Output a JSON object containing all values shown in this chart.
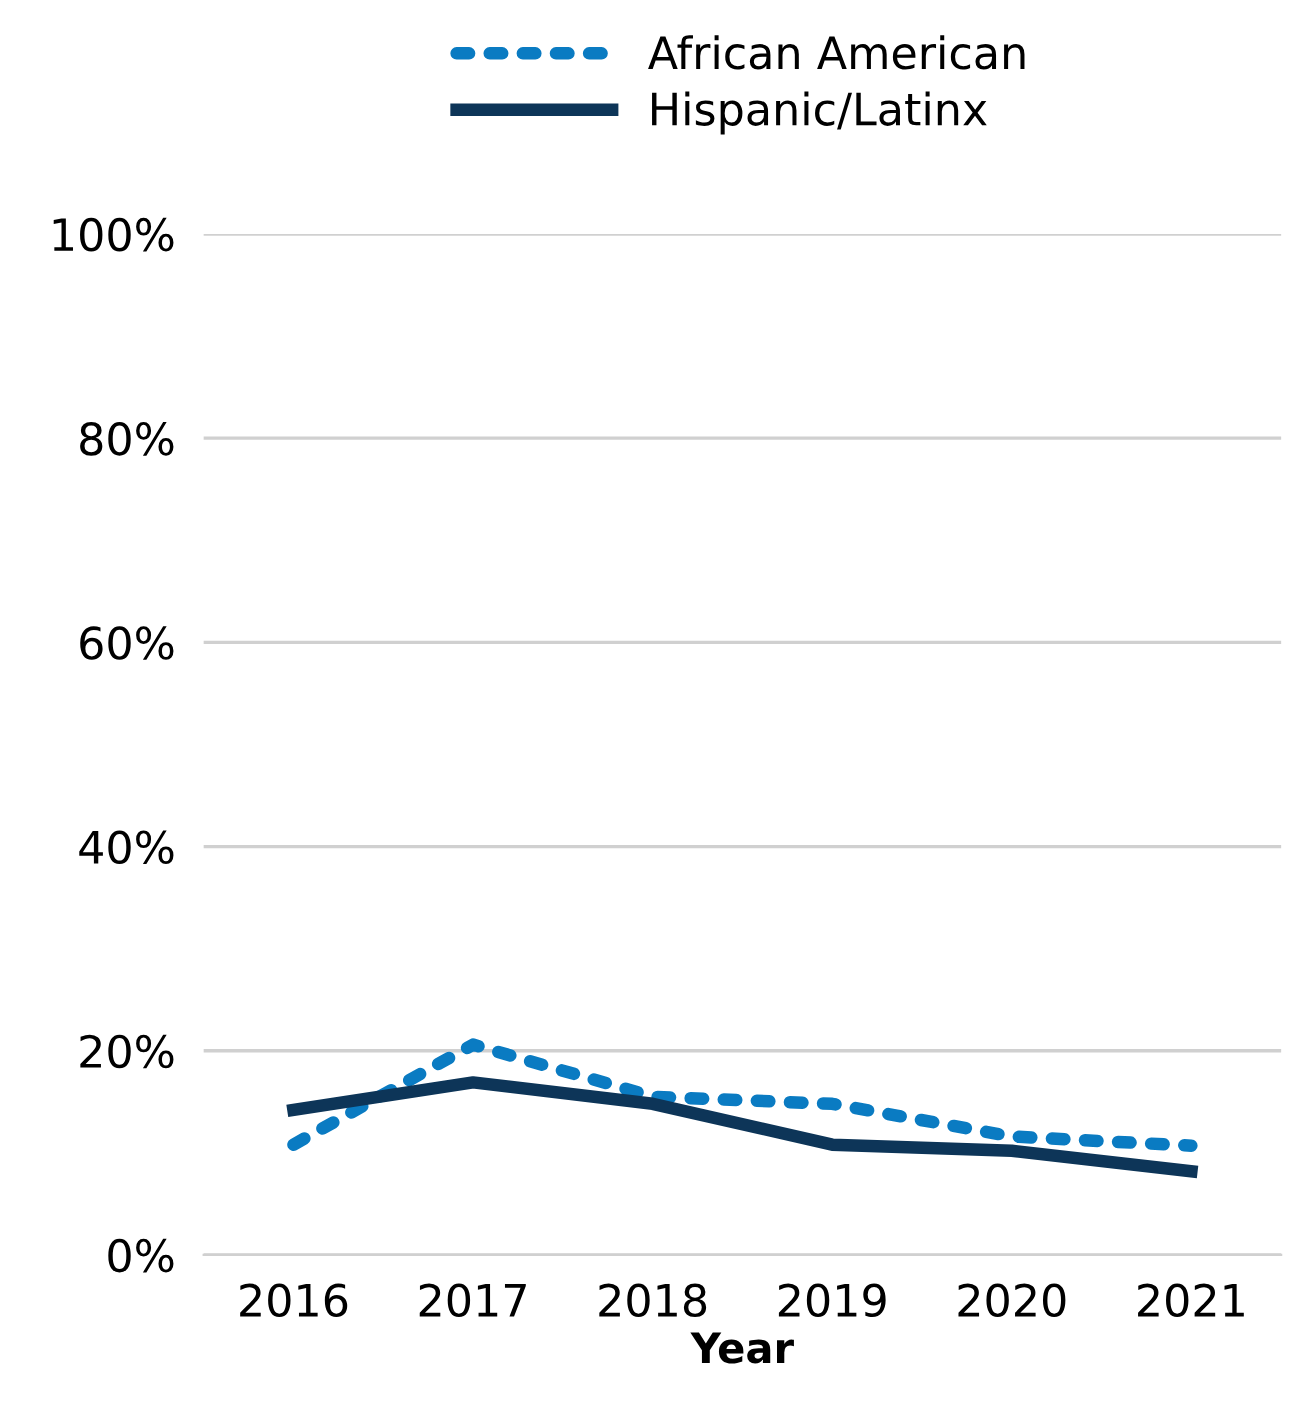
{
  "chart_data": {
    "type": "line",
    "xlabel": "Year",
    "categories": [
      "2016",
      "2017",
      "2018",
      "2019",
      "2020",
      "2021"
    ],
    "series": [
      {
        "name": "African American",
        "color": "#0a7bc2",
        "line_style": "dotted",
        "values": [
          10.8,
          20.6,
          15.5,
          14.8,
          11.6,
          10.7
        ]
      },
      {
        "name": "Hispanic/Latinx",
        "color": "#0d3558",
        "line_style": "solid",
        "values": [
          14.2,
          16.9,
          14.8,
          10.8,
          10.2,
          8.2
        ]
      }
    ],
    "ylim": [
      0,
      100
    ],
    "yticks": [
      {
        "value": 0,
        "label": "0%"
      },
      {
        "value": 20,
        "label": "20%"
      },
      {
        "value": 40,
        "label": "40%"
      },
      {
        "value": 60,
        "label": "60%"
      },
      {
        "value": 80,
        "label": "80%"
      },
      {
        "value": 100,
        "label": "100%"
      }
    ],
    "grid": "y",
    "legend": "top",
    "marker": "none"
  }
}
